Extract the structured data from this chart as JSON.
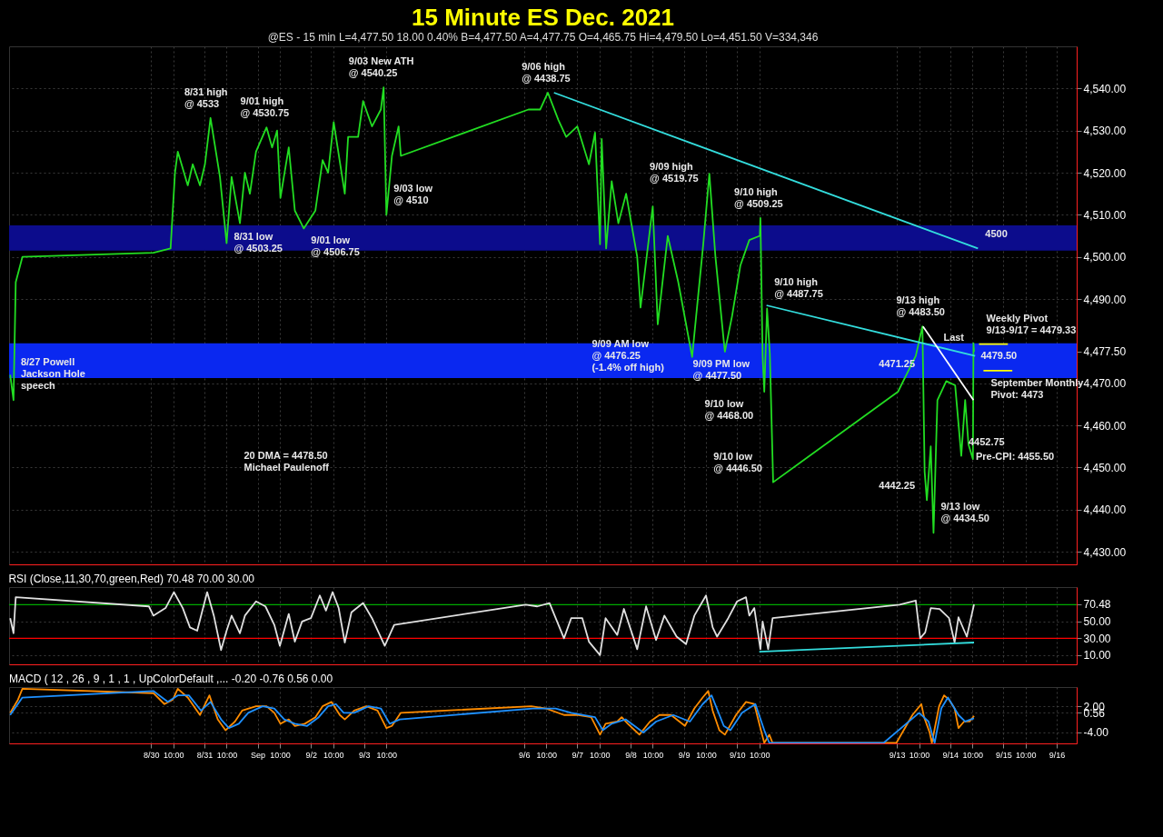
{
  "chart_data": [
    {
      "type": "line",
      "title": "15 Minute ES Dec. 2021",
      "subtitle": "@ES - 15 min  L=4,477.50 18.00 0.40%  B=4,477.50 A=4,477.75 O=4,465.75 Hi=4,479.50 Lo=4,451.50 V=334,346",
      "xlim": [
        "2021-08-27T08:00",
        "2021-09-16T09:00"
      ],
      "ylim": [
        4427,
        4550
      ],
      "xticks": [
        {
          "value": "2021-08-30",
          "label": null
        },
        {
          "value": "2021-08-30T10:00",
          "label": null
        },
        {
          "value": "2021-08-31",
          "label": null
        },
        {
          "value": "2021-08-31T10:00",
          "label": null
        },
        {
          "value": "2021-09-01",
          "label": null
        },
        {
          "value": "2021-09-01T10:00",
          "label": null
        },
        {
          "value": "2021-09-02",
          "label": null
        },
        {
          "value": "2021-09-02T10:00",
          "label": null
        },
        {
          "value": "2021-09-03",
          "label": null
        },
        {
          "value": "2021-09-03T10:00",
          "label": null
        },
        {
          "value": "2021-09-06",
          "label": null
        },
        {
          "value": "2021-09-06T10:00",
          "label": null
        },
        {
          "value": "2021-09-07",
          "label": null
        },
        {
          "value": "2021-09-07T10:00",
          "label": null
        },
        {
          "value": "2021-09-08",
          "label": null
        },
        {
          "value": "2021-09-08T10:00",
          "label": null
        },
        {
          "value": "2021-09-09",
          "label": null
        },
        {
          "value": "2021-09-09T10:00",
          "label": null
        },
        {
          "value": "2021-09-10",
          "label": null
        },
        {
          "value": "2021-09-10T10:00",
          "label": null
        },
        {
          "value": "2021-09-13",
          "label": null
        },
        {
          "value": "2021-09-13T10:00",
          "label": null
        },
        {
          "value": "2021-09-14",
          "label": null
        },
        {
          "value": "2021-09-14T10:00",
          "label": null
        },
        {
          "value": "2021-09-15",
          "label": null
        },
        {
          "value": "2021-09-15T10:00",
          "label": null
        },
        {
          "value": "2021-09-16",
          "label": null
        }
      ],
      "yticks": [
        {
          "value": 4430,
          "label": "4,430.00"
        },
        {
          "value": 4440,
          "label": "4,440.00"
        },
        {
          "value": 4450,
          "label": "4,450.00"
        },
        {
          "value": 4460,
          "label": "4,460.00"
        },
        {
          "value": 4470,
          "label": "4,470.00"
        },
        {
          "value": 4477.5,
          "label": "4,477.50"
        },
        {
          "value": 4490,
          "label": "4,490.00"
        },
        {
          "value": 4500,
          "label": "4,500.00"
        },
        {
          "value": 4510,
          "label": "4,510.00"
        },
        {
          "value": 4520,
          "label": "4,520.00"
        },
        {
          "value": 4530,
          "label": "4,530.00"
        },
        {
          "value": 4540,
          "label": "4,540.00"
        }
      ],
      "tick_labels": "y",
      "grid": true,
      "bands": [
        {
          "axis": "y",
          "from": 4501.5,
          "to": 4507.5,
          "color": "#0c0c8c"
        },
        {
          "axis": "y",
          "from": 4471.25,
          "to": 4479.5,
          "color": "#0a28f0"
        }
      ],
      "series": [
        {
          "color": "#22dd22",
          "x": [
            "2021-08-27T08:30",
            "2021-08-27T10:00",
            "2021-08-27T11:00",
            "2021-08-27T14:00",
            "2021-08-30T01:00",
            "2021-08-30T08:45",
            "2021-08-30T10:45",
            "2021-08-30T12:00",
            "2021-08-30T16:30",
            "2021-08-30T18:45",
            "2021-08-30T22:00",
            "2021-08-31T00:15",
            "2021-08-31T02:45",
            "2021-08-31T07:00",
            "2021-08-31T10:00",
            "2021-08-31T12:15",
            "2021-08-31T16:00",
            "2021-08-31T18:15",
            "2021-08-31T20:30",
            "2021-08-31T23:15",
            "2021-09-01T04:00",
            "2021-09-01T06:30",
            "2021-09-01T08:45",
            "2021-09-01T10:15",
            "2021-09-01T14:00",
            "2021-09-01T16:45",
            "2021-09-01T20:45",
            "2021-09-02T02:00",
            "2021-09-02T05:15",
            "2021-09-02T07:45",
            "2021-09-02T10:15",
            "2021-09-02T15:15",
            "2021-09-02T16:45",
            "2021-09-02T21:15",
            "2021-09-02T23:30",
            "2021-09-03T03:30",
            "2021-09-03T07:30",
            "2021-09-03T08:45",
            "2021-09-03T10:00",
            "2021-09-03T12:30",
            "2021-09-03T15:30",
            "2021-09-03T16:30",
            "2021-09-06T02:00",
            "2021-09-06T07:15",
            "2021-09-06T10:45",
            "2021-09-06T15:30",
            "2021-09-06T19:00",
            "2021-09-07T00:00",
            "2021-09-07T05:15",
            "2021-09-07T08:00",
            "2021-09-07T10:15",
            "2021-09-07T11:00",
            "2021-09-07T13:00",
            "2021-09-07T15:30",
            "2021-09-07T18:30",
            "2021-09-07T22:00",
            "2021-09-08T03:00",
            "2021-09-08T04:30",
            "2021-09-08T10:00",
            "2021-09-08T12:15",
            "2021-09-08T16:45",
            "2021-09-08T21:30",
            "2021-09-09T03:45",
            "2021-09-09T06:30",
            "2021-09-09T08:45",
            "2021-09-09T11:30",
            "2021-09-09T14:15",
            "2021-09-09T18:00",
            "2021-09-09T18:30",
            "2021-09-09T21:45",
            "2021-09-10T01:30",
            "2021-09-10T05:30",
            "2021-09-10T10:15",
            "2021-09-10T10:30",
            "2021-09-10T11:30",
            "2021-09-10T12:15",
            "2021-09-10T13:30",
            "2021-09-10T14:45",
            "2021-09-10T16:15",
            "2021-09-13T00:30",
            "2021-09-13T08:30",
            "2021-09-13T11:30",
            "2021-09-13T12:30",
            "2021-09-13T13:30",
            "2021-09-13T15:15",
            "2021-09-13T16:30",
            "2021-09-13T18:15",
            "2021-09-13T22:15",
            "2021-09-14T02:15",
            "2021-09-14T05:00",
            "2021-09-14T06:45",
            "2021-09-14T08:15",
            "2021-09-14T10:15",
            "2021-09-14T10:30",
            "2021-09-14T10:45"
          ],
          "values": [
            4472,
            4466,
            4494,
            4500,
            4501,
            4502,
            4520,
            4525,
            4517,
            4522,
            4517,
            4522,
            4533,
            4519,
            4503.25,
            4519,
            4508,
            4520,
            4515,
            4525,
            4530.75,
            4526,
            4530,
            4514,
            4526,
            4511,
            4506.75,
            4511,
            4523,
            4520,
            4532,
            4515,
            4528.5,
            4528.5,
            4537,
            4531,
            4535,
            4540.25,
            4510,
            4524,
            4531,
            4524,
            4535,
            4535,
            4539,
            4532.5,
            4528.5,
            4531,
            4522,
            4529.5,
            4503,
            4528,
            4502,
            4518,
            4508,
            4515,
            4500,
            4488,
            4512,
            4484,
            4505,
            4494,
            4476.25,
            4491,
            4503,
            4519.75,
            4500,
            4480,
            4477.5,
            4486,
            4498,
            4504,
            4505,
            4509.25,
            4476.5,
            4468,
            4487.75,
            4477,
            4446.5,
            4468,
            4476.5,
            4483.5,
            4449,
            4442.25,
            4455,
            4434.5,
            4466,
            4470.5,
            4469.5,
            4452.75,
            4466,
            4455.5,
            4452,
            4479.5,
            4477.5
          ]
        },
        {
          "color": "#33dddd",
          "x": [
            "2021-09-06T13:30",
            "2021-09-14T12:30"
          ],
          "values": [
            4539,
            4502
          ]
        },
        {
          "color": "#33dddd",
          "x": [
            "2021-09-10T13:15",
            "2021-09-14T11:15"
          ],
          "values": [
            4488.5,
            4476.5
          ]
        },
        {
          "color": "#ffffff",
          "x": [
            "2021-09-13T11:45",
            "2021-09-14T10:30"
          ],
          "values": [
            4483.5,
            4466
          ]
        },
        {
          "color": "#ffff00",
          "x": [
            "2021-09-14T13:00",
            "2021-09-15T02:00"
          ],
          "values": [
            4479.3,
            4479.3
          ]
        },
        {
          "color": "#ffff00",
          "x": [
            "2021-09-14T15:00",
            "2021-09-15T04:00"
          ],
          "values": [
            4473,
            4473
          ]
        }
      ],
      "annotations": [
        {
          "text": "8/31 high\n@ 4533",
          "x": "2021-08-31T02:45",
          "y": 4533
        },
        {
          "text": "9/01 high\n@ 4530.75",
          "x": "2021-09-01T04:00",
          "y": 4530.75
        },
        {
          "text": "9/03 New ATH\n@ 4540.25",
          "x": "2021-09-03T08:45",
          "y": 4540.25
        },
        {
          "text": "9/06 high\n@ 4438.75",
          "x": "2021-09-06T10:45",
          "y": 4539
        },
        {
          "text": "8/31 low\n@ 4503.25",
          "x": "2021-08-31T10:00",
          "y": 4503.25
        },
        {
          "text": "9/01 low\n@ 4506.75",
          "x": "2021-09-01T20:45",
          "y": 4506.75
        },
        {
          "text": "9/03 low\n@ 4510",
          "x": "2021-09-03T10:00",
          "y": 4510
        },
        {
          "text": "8/27 Powell\nJackson Hole\nspeech",
          "x": "2021-08-27T10:00",
          "y": 4466
        },
        {
          "text": "9/09 high\n@ 4519.75",
          "x": "2021-09-09T11:30",
          "y": 4519.75
        },
        {
          "text": "9/10 high\n@ 4509.25",
          "x": "2021-09-10T10:30",
          "y": 4509.25
        },
        {
          "text": "4500",
          "x": "2021-09-14T12:30",
          "y": 4502
        },
        {
          "text": "9/10 high\n@ 4487.75",
          "x": "2021-09-10T13:30",
          "y": 4487.75
        },
        {
          "text": "9/13 high\n@ 4483.50",
          "x": "2021-09-13T11:30",
          "y": 4483.5
        },
        {
          "text": "Weekly Pivot\n9/13-9/17 = 4479.33",
          "x": "2021-09-14T13:00",
          "y": 4479.3
        },
        {
          "text": "September Monthly\nPivot: 4473",
          "x": "2021-09-14T15:00",
          "y": 4473
        },
        {
          "text": "4479.50",
          "x": "2021-09-14T10:30",
          "y": 4479.5
        },
        "20 DMA = 4478.50",
        {
          "text": "Last",
          "x": "2021-09-14T10:45",
          "y": 4477.5
        },
        {
          "text": "4471.25",
          "x": "2021-09-13T13:30",
          "y": 4471.25
        },
        {
          "text": "9/09 AM low\n@ 4476.25\n(-1.4% off high)",
          "x": "2021-09-09T03:45",
          "y": 4476.25
        },
        {
          "text": "9/09 PM low\n@ 4477.50",
          "x": "2021-09-09T18:30",
          "y": 4477.5
        },
        {
          "text": "9/10 low\n@ 4468.00",
          "x": "2021-09-10T12:15",
          "y": 4468
        },
        {
          "text": "Pre-CPI: 4455.50",
          "x": "2021-09-14T08:15",
          "y": 4455.5
        },
        {
          "text": "4452.75",
          "x": "2021-09-14T05:00",
          "y": 4452.75
        },
        {
          "text": "9/10 low\n@ 4446.50",
          "x": "2021-09-10T16:15",
          "y": 4446.5
        },
        {
          "text": "4442.25",
          "x": "2021-09-13T13:30",
          "y": 4442.25
        },
        {
          "text": "9/13 low\n@ 4434.50",
          "x": "2021-09-13T16:30",
          "y": 4434.5
        },
        "Michael Paulenoff"
      ]
    },
    {
      "type": "line",
      "title": "RSI (Close,11,30,70,green,Red)  70.48  70.00  30.00",
      "xlim": [
        "2021-08-27T08:00",
        "2021-09-16T09:00"
      ],
      "ylim": [
        -1,
        91
      ],
      "xticks": [
        {
          "value": "2021-08-30",
          "label": null
        },
        {
          "value": "2021-08-30T10:00",
          "label": null
        },
        {
          "value": "2021-08-31",
          "label": null
        },
        {
          "value": "2021-08-31T10:00",
          "label": null
        },
        {
          "value": "2021-09-01",
          "label": null
        },
        {
          "value": "2021-09-01T10:00",
          "label": null
        },
        {
          "value": "2021-09-02",
          "label": null
        },
        {
          "value": "2021-09-02T10:00",
          "label": null
        },
        {
          "value": "2021-09-03",
          "label": null
        },
        {
          "value": "2021-09-03T10:00",
          "label": null
        },
        {
          "value": "2021-09-06",
          "label": null
        },
        {
          "value": "2021-09-06T10:00",
          "label": null
        },
        {
          "value": "2021-09-07",
          "label": null
        },
        {
          "value": "2021-09-07T10:00",
          "label": null
        },
        {
          "value": "2021-09-08",
          "label": null
        },
        {
          "value": "2021-09-08T10:00",
          "label": null
        },
        {
          "value": "2021-09-09",
          "label": null
        },
        {
          "value": "2021-09-09T10:00",
          "label": null
        },
        {
          "value": "2021-09-10",
          "label": null
        },
        {
          "value": "2021-09-10T10:00",
          "label": null
        },
        {
          "value": "2021-09-13",
          "label": null
        },
        {
          "value": "2021-09-13T10:00",
          "label": null
        },
        {
          "value": "2021-09-14",
          "label": null
        },
        {
          "value": "2021-09-14T10:00",
          "label": null
        },
        {
          "value": "2021-09-15",
          "label": null
        },
        {
          "value": "2021-09-15T10:00",
          "label": null
        },
        {
          "value": "2021-09-16",
          "label": null
        }
      ],
      "yticks": [
        {
          "value": 10,
          "label": "10.00"
        },
        {
          "value": 30,
          "label": "30.00"
        },
        {
          "value": 50,
          "label": "50.00"
        },
        {
          "value": 70.48,
          "label": "70.48"
        }
      ],
      "tick_labels": "y",
      "grid": true,
      "ref_lines": [
        {
          "axis": "y",
          "value": 70,
          "color": "#00aa00"
        },
        {
          "axis": "y",
          "value": 30,
          "color": "#ff0000"
        }
      ],
      "series": [
        {
          "color": "#e0e0e0",
          "x": [
            "2021-08-27T08:30",
            "2021-08-27T10:00",
            "2021-08-27T11:00",
            "2021-08-29T23:00",
            "2021-08-30T01:00",
            "2021-08-30T06:30",
            "2021-08-30T10:15",
            "2021-08-30T14:15",
            "2021-08-30T17:30",
            "2021-08-30T20:45",
            "2021-08-31T01:15",
            "2021-08-31T04:15",
            "2021-08-31T07:30",
            "2021-08-31T10:00",
            "2021-08-31T12:15",
            "2021-08-31T16:00",
            "2021-08-31T18:15",
            "2021-08-31T23:15",
            "2021-09-01T03:30",
            "2021-09-01T07:30",
            "2021-09-01T10:00",
            "2021-09-01T14:00",
            "2021-09-01T16:45",
            "2021-09-01T20:00",
            "2021-09-02T00:00",
            "2021-09-02T04:00",
            "2021-09-02T06:45",
            "2021-09-02T09:45",
            "2021-09-02T12:30",
            "2021-09-02T15:15",
            "2021-09-02T18:15",
            "2021-09-02T23:30",
            "2021-09-03T03:30",
            "2021-09-03T09:15",
            "2021-09-03T13:30",
            "2021-09-06T00:45",
            "2021-09-06T06:00",
            "2021-09-06T11:30",
            "2021-09-06T18:00",
            "2021-09-06T21:15",
            "2021-09-07T02:15",
            "2021-09-07T05:15",
            "2021-09-07T10:15",
            "2021-09-07T12:45",
            "2021-09-07T18:00",
            "2021-09-07T21:00",
            "2021-09-08T03:00",
            "2021-09-08T07:00",
            "2021-09-08T11:30",
            "2021-09-08T15:15",
            "2021-09-08T20:45",
            "2021-09-09T01:00",
            "2021-09-09T04:45",
            "2021-09-09T10:00",
            "2021-09-09T13:00",
            "2021-09-09T15:00",
            "2021-09-09T20:00",
            "2021-09-10T00:00",
            "2021-09-10T04:00",
            "2021-09-10T05:30",
            "2021-09-10T07:45",
            "2021-09-10T10:30",
            "2021-09-10T11:30",
            "2021-09-10T14:00",
            "2021-09-10T16:00",
            "2021-09-13T01:15",
            "2021-09-13T08:30",
            "2021-09-13T10:30",
            "2021-09-13T12:45",
            "2021-09-13T15:15",
            "2021-09-13T19:15",
            "2021-09-13T23:30",
            "2021-09-14T02:00",
            "2021-09-14T03:45",
            "2021-09-14T07:30",
            "2021-09-14T10:45"
          ],
          "values": [
            54,
            36,
            79,
            68,
            57,
            66,
            85,
            66,
            43,
            39,
            85,
            57,
            16,
            39,
            57,
            36,
            57,
            74,
            68,
            46,
            21,
            59,
            26,
            50,
            54,
            81,
            63,
            85,
            66,
            25,
            61,
            72,
            54,
            21,
            46,
            70,
            68,
            72,
            30,
            54,
            54,
            26,
            10,
            54,
            34,
            65,
            17,
            68,
            28,
            57,
            32,
            23,
            57,
            81,
            43,
            32,
            54,
            74,
            79,
            57,
            66,
            17,
            50,
            17,
            54,
            70,
            75,
            30,
            37,
            66,
            65,
            54,
            25,
            55,
            32,
            70.48
          ]
        },
        {
          "color": "#33dddd",
          "x": [
            "2021-09-10T10:00",
            "2021-09-14T10:45"
          ],
          "values": [
            14,
            25
          ]
        }
      ]
    },
    {
      "type": "line",
      "title": "MACD ( 12 , 26 , 9 , 1 , 1 , UpColorDefault ,...  -0.20  -0.76  0.56  0.00",
      "xlim": [
        "2021-08-27T08:00",
        "2021-09-16T09:00"
      ],
      "ylim": [
        -6.5,
        6.4
      ],
      "xticks": [
        {
          "value": "2021-08-30",
          "label": "8/30"
        },
        {
          "value": "2021-08-30T10:00",
          "label": "10:00"
        },
        {
          "value": "2021-08-31",
          "label": "8/31"
        },
        {
          "value": "2021-08-31T10:00",
          "label": "10:00"
        },
        {
          "value": "2021-09-01",
          "label": "Sep"
        },
        {
          "value": "2021-09-01T10:00",
          "label": "10:00"
        },
        {
          "value": "2021-09-02",
          "label": "9/2"
        },
        {
          "value": "2021-09-02T10:00",
          "label": "10:00"
        },
        {
          "value": "2021-09-03",
          "label": "9/3"
        },
        {
          "value": "2021-09-03T10:00",
          "label": "10:00"
        },
        {
          "value": "2021-09-06",
          "label": "9/6"
        },
        {
          "value": "2021-09-06T10:00",
          "label": "10:00"
        },
        {
          "value": "2021-09-07",
          "label": "9/7"
        },
        {
          "value": "2021-09-07T10:00",
          "label": "10:00"
        },
        {
          "value": "2021-09-08",
          "label": "9/8"
        },
        {
          "value": "2021-09-08T10:00",
          "label": "10:00"
        },
        {
          "value": "2021-09-09",
          "label": "9/9"
        },
        {
          "value": "2021-09-09T10:00",
          "label": "10:00"
        },
        {
          "value": "2021-09-10",
          "label": "9/10"
        },
        {
          "value": "2021-09-10T10:00",
          "label": "10:00"
        },
        {
          "value": "2021-09-13",
          "label": "9/13"
        },
        {
          "value": "2021-09-13T10:00",
          "label": "10:00"
        },
        {
          "value": "2021-09-14",
          "label": "9/14"
        },
        {
          "value": "2021-09-14T10:00",
          "label": "10:00"
        },
        {
          "value": "2021-09-15",
          "label": "9/15"
        },
        {
          "value": "2021-09-15T10:00",
          "label": "10:00"
        },
        {
          "value": "2021-09-16",
          "label": "9/16"
        }
      ],
      "yticks": [
        {
          "value": 2,
          "label": "2.00"
        },
        {
          "value": 0.56,
          "label": "0.56"
        },
        {
          "value": -4,
          "label": "-4.00"
        }
      ],
      "grid": true,
      "series": [
        {
          "color": "#ff8c00",
          "x": [
            "2021-08-27T08:30",
            "2021-08-27T12:00",
            "2021-08-27T14:00",
            "2021-08-30T01:00",
            "2021-08-30T06:00",
            "2021-08-30T09:45",
            "2021-08-30T12:00",
            "2021-08-30T16:30",
            "2021-08-30T22:00",
            "2021-08-31T02:15",
            "2021-08-31T06:00",
            "2021-08-31T09:30",
            "2021-08-31T13:45",
            "2021-08-31T17:00",
            "2021-08-31T23:15",
            "2021-09-01T04:00",
            "2021-09-01T07:30",
            "2021-09-01T10:15",
            "2021-09-01T14:00",
            "2021-09-01T16:45",
            "2021-09-01T21:15",
            "2021-09-02T02:00",
            "2021-09-02T05:15",
            "2021-09-02T09:15",
            "2021-09-02T13:00",
            "2021-09-02T15:15",
            "2021-09-02T19:30",
            "2021-09-03T01:00",
            "2021-09-03T06:00",
            "2021-09-03T10:00",
            "2021-09-03T12:30",
            "2021-09-03T16:30",
            "2021-09-06T03:15",
            "2021-09-06T10:00",
            "2021-09-06T18:00",
            "2021-09-07T00:30",
            "2021-09-07T06:15",
            "2021-09-07T10:15",
            "2021-09-07T12:45",
            "2021-09-07T18:00",
            "2021-09-07T20:00",
            "2021-09-07T22:45",
            "2021-09-08T04:00",
            "2021-09-08T08:45",
            "2021-09-08T13:00",
            "2021-09-08T18:15",
            "2021-09-09T00:30",
            "2021-09-09T04:45",
            "2021-09-09T08:30",
            "2021-09-09T11:00",
            "2021-09-09T13:00",
            "2021-09-09T16:00",
            "2021-09-09T18:30",
            "2021-09-09T23:30",
            "2021-09-10T04:00",
            "2021-09-10T07:45",
            "2021-09-10T10:30",
            "2021-09-10T12:15",
            "2021-09-10T14:30",
            "2021-09-10T16:00",
            "2021-09-12T23:45",
            "2021-09-13T07:00",
            "2021-09-13T11:00",
            "2021-09-13T12:15",
            "2021-09-13T14:45",
            "2021-09-13T15:45",
            "2021-09-13T19:00",
            "2021-09-13T21:15",
            "2021-09-13T23:30",
            "2021-09-14T02:00",
            "2021-09-14T03:45",
            "2021-09-14T06:15",
            "2021-09-14T08:45",
            "2021-09-14T10:45"
          ],
          "values": [
            0.5,
            3.5,
            6,
            5,
            2.5,
            3.5,
            6,
            4,
            0,
            4.5,
            -1,
            -3.5,
            -1.5,
            1,
            2,
            2,
            0.5,
            -2,
            -1,
            -2.5,
            -2,
            -0.5,
            2,
            3,
            0,
            -1,
            1,
            2,
            1,
            -3,
            -2.5,
            0.5,
            2,
            1.5,
            0,
            0,
            -0.5,
            -4.5,
            -2,
            -1.5,
            -0.5,
            -2,
            -4.5,
            -1.5,
            0,
            0,
            -2.5,
            1.5,
            4,
            5.5,
            1,
            -3.5,
            -4.5,
            0,
            3,
            2.5,
            -3,
            -6.4,
            -4.5,
            -6.4,
            -6.4,
            0,
            2.5,
            -0.5,
            -4,
            -6.4,
            2,
            4.5,
            3.5,
            1.5,
            -3,
            -1.5,
            -1.5,
            -0.2
          ]
        },
        {
          "color": "#1e90ff",
          "x": [
            "2021-08-27T08:30",
            "2021-08-27T14:00",
            "2021-08-30T01:00",
            "2021-08-30T07:30",
            "2021-08-30T12:00",
            "2021-08-30T17:00",
            "2021-08-30T22:30",
            "2021-08-31T02:45",
            "2021-08-31T07:30",
            "2021-08-31T11:00",
            "2021-08-31T15:30",
            "2021-08-31T19:45",
            "2021-09-01T02:15",
            "2021-09-01T07:30",
            "2021-09-01T12:00",
            "2021-09-01T16:45",
            "2021-09-01T22:15",
            "2021-09-02T03:30",
            "2021-09-02T07:45",
            "2021-09-02T11:15",
            "2021-09-02T14:45",
            "2021-09-02T19:30",
            "2021-09-03T02:00",
            "2021-09-03T07:30",
            "2021-09-03T11:30",
            "2021-09-03T16:00",
            "2021-09-06T04:00",
            "2021-09-06T14:15",
            "2021-09-06T21:15",
            "2021-09-07T08:00",
            "2021-09-07T11:30",
            "2021-09-07T15:30",
            "2021-09-07T21:45",
            "2021-09-08T05:45",
            "2021-09-08T11:30",
            "2021-09-08T19:15",
            "2021-09-09T02:45",
            "2021-09-09T08:30",
            "2021-09-09T12:30",
            "2021-09-09T18:00",
            "2021-09-09T21:00",
            "2021-09-10T02:15",
            "2021-09-10T08:15",
            "2021-09-10T12:15",
            "2021-09-10T14:30",
            "2021-09-12T18:00",
            "2021-09-13T10:00",
            "2021-09-13T14:15",
            "2021-09-13T17:00",
            "2021-09-13T20:00",
            "2021-09-13T23:00",
            "2021-09-14T03:45",
            "2021-09-14T06:45",
            "2021-09-14T10:45"
          ],
          "values": [
            0,
            4,
            5.5,
            3,
            4.5,
            4.5,
            1,
            3,
            -1,
            -3,
            -2,
            0.5,
            2,
            1.5,
            -1,
            -2,
            -2.5,
            -0.5,
            2,
            2.5,
            0.5,
            0.5,
            2,
            1.5,
            -2,
            -1,
            1.5,
            1.5,
            0.5,
            -0.5,
            -3.5,
            -2,
            -1,
            -4,
            -1.5,
            0,
            -1.5,
            2.5,
            4.5,
            -2.5,
            -3.5,
            0.5,
            2.5,
            -3.5,
            -6.4,
            -6.4,
            0.5,
            -1.5,
            -6.4,
            1.5,
            4,
            0,
            -1.5,
            -0.76
          ]
        }
      ]
    }
  ]
}
